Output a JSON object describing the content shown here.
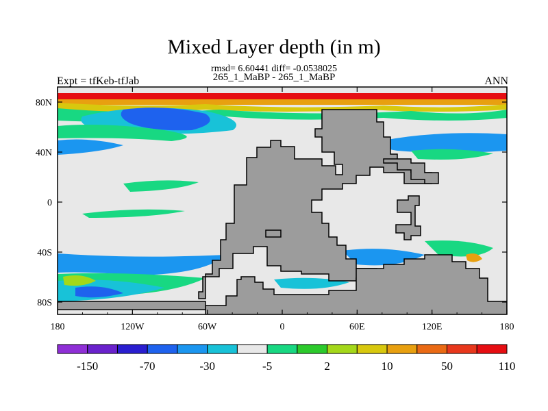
{
  "title": "Mixed Layer depth (in m)",
  "stats": "rmsd= 6.60441 diff= -0.0538025",
  "subtitle": "265_1_MaBP - 265_1_MaBP",
  "left_label": "Expt = tfKeb-tfJab",
  "right_label": "ANN",
  "x_ticks": [
    "180",
    "120W",
    "60W",
    "0",
    "60E",
    "120E",
    "180"
  ],
  "y_ticks": [
    "80N",
    "40N",
    "0",
    "40S",
    "80S"
  ],
  "colorbar": {
    "colors": [
      "#8f2fd6",
      "#6a22cc",
      "#2a1ed0",
      "#1e62ee",
      "#1b96f0",
      "#18c2d8",
      "#e8e8e8",
      "#18d882",
      "#2cca2c",
      "#a4d81a",
      "#d8c80e",
      "#e8a010",
      "#ea6a14",
      "#e8381c",
      "#e60e12"
    ],
    "labels": [
      "-150",
      "-70",
      "-30",
      "-5",
      "2",
      "10",
      "50",
      "110"
    ]
  },
  "colors": {
    "land": "#9c9c9c",
    "ocean_background": "#e8e8e8",
    "neg_blue": "#1e62ee",
    "neg_light": "#1b96f0",
    "neg_cyan": "#18c2d8",
    "pos_green": "#18d882",
    "pos_lime": "#a4d81a",
    "pos_yellow": "#d8c80e",
    "pos_orange": "#e8a010",
    "pos_red": "#e60e12"
  }
}
